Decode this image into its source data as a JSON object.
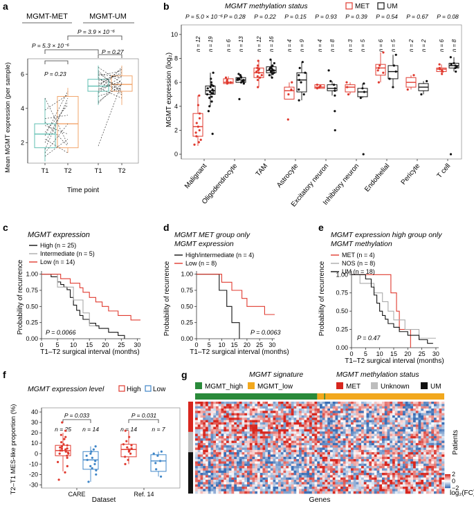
{
  "colors": {
    "met": "#e03a2f",
    "um": "#111111",
    "teal": "#5fbfb2",
    "orange": "#f2a46a",
    "high": "#111111",
    "intermediate": "#aaaaaa",
    "low": "#e03a2f",
    "blue": "#3f86c8",
    "heat_red": "#d7261e",
    "heat_blue": "#3b6fb6",
    "green": "#2a8a3a",
    "amber": "#f2a81d",
    "grey": "#bdbdbd"
  },
  "panels": {
    "a": "a",
    "b": "b",
    "c": "c",
    "d": "d",
    "e": "e",
    "f": "f",
    "g": "g"
  },
  "chart_data": [
    {
      "id": "a",
      "type": "line",
      "group_labels": [
        "MGMT-MET",
        "MGMT-UM"
      ],
      "pvalues": [
        "P = 5.3 × 10⁻⁶",
        "P = 3.9 × 10⁻⁶",
        "P = 0.23",
        "P = 0.27"
      ],
      "categories": [
        "T1",
        "T2",
        "T1",
        "T2"
      ],
      "ylabel": "Mean MGMT expression (per sample)",
      "xlabel": "Time point",
      "ylim": [
        0.8,
        6.9
      ],
      "yticks": [
        2,
        4,
        6
      ],
      "met_pairs": [
        [
          2.2,
          1.4
        ],
        [
          1.6,
          4.6
        ],
        [
          3.2,
          1.8
        ],
        [
          3.9,
          4.8
        ],
        [
          2.6,
          4.2
        ],
        [
          3.0,
          2.5
        ],
        [
          1.4,
          3.1
        ],
        [
          4.6,
          1.9
        ],
        [
          2.4,
          5.0
        ],
        [
          3.4,
          3.6
        ],
        [
          2.0,
          4.4
        ],
        [
          1.2,
          2.2
        ]
      ],
      "um_pairs": [
        [
          5.2,
          4.6
        ],
        [
          5.6,
          6.0
        ],
        [
          4.4,
          5.4
        ],
        [
          6.0,
          5.8
        ],
        [
          5.0,
          6.4
        ],
        [
          5.5,
          5.1
        ],
        [
          6.4,
          5.5
        ],
        [
          4.9,
          5.9
        ],
        [
          5.8,
          4.8
        ],
        [
          5.3,
          6.3
        ],
        [
          6.1,
          5.0
        ],
        [
          5.7,
          5.3
        ],
        [
          4.3,
          5.7
        ],
        [
          5.9,
          6.2
        ],
        [
          5.1,
          5.6
        ],
        [
          6.2,
          4.9
        ],
        [
          5.4,
          6.1
        ],
        [
          4.7,
          5.2
        ],
        [
          1.8,
          5.5
        ]
      ],
      "boxes": [
        {
          "q1": 1.7,
          "med": 2.5,
          "q3": 3.1,
          "lo": 0.9,
          "hi": 4.6
        },
        {
          "q1": 1.7,
          "med": 3.1,
          "q3": 4.7,
          "lo": 1.4,
          "hi": 5.2
        },
        {
          "q1": 5.0,
          "med": 5.3,
          "q3": 5.7,
          "lo": 4.2,
          "hi": 6.5
        },
        {
          "q1": 5.0,
          "med": 5.4,
          "q3": 5.9,
          "lo": 4.2,
          "hi": 6.5
        }
      ]
    },
    {
      "id": "b",
      "type": "box",
      "title": "MGMT methylation status",
      "legend": [
        "MET",
        "UM"
      ],
      "ylabel": "MGMT expression (log₂)",
      "ylim": [
        -0.4,
        10.8
      ],
      "yticks": [
        0,
        2,
        4,
        6,
        8,
        10
      ],
      "categories": [
        "Malignant",
        "Oligodendrocyte",
        "TAM",
        "Astrocyte",
        "Excitatory neuron",
        "Inhibitory neuron",
        "Endothelial",
        "Pericyte",
        "T cell"
      ],
      "pvalues": [
        "P = 5.0 × 10⁻⁶",
        "P = 0.28",
        "P = 0.22",
        "P = 0.15",
        "P = 0.93",
        "P = 0.39",
        "P = 0.54",
        "P = 0.67",
        "P = 0.08"
      ],
      "n_met": [
        "n = 12",
        "n = 6",
        "n = 12",
        "n = 4",
        "n = 4",
        "n = 3",
        "n = 6",
        "n = 2",
        "n = 6"
      ],
      "n_um": [
        "n = 19",
        "n = 13",
        "n = 16",
        "n = 9",
        "n = 8",
        "n = 5",
        "n = 5",
        "n = 2",
        "n = 8"
      ],
      "met": [
        {
          "q1": 1.5,
          "med": 2.3,
          "q3": 3.4,
          "lo": 0.7,
          "hi": 4.9,
          "pts": [
            0.8,
            1.2,
            1.5,
            1.8,
            2.0,
            2.3,
            2.6,
            3.0,
            3.4,
            4.1,
            4.9,
            1.0
          ]
        },
        {
          "q1": 5.9,
          "med": 6.0,
          "q3": 6.3,
          "lo": 5.9,
          "hi": 6.5,
          "pts": [
            5.9,
            6.0,
            6.2,
            6.4,
            6.1,
            6.0
          ]
        },
        {
          "q1": 6.4,
          "med": 6.8,
          "q3": 7.2,
          "lo": 5.6,
          "hi": 7.8,
          "pts": [
            5.6,
            6.2,
            6.4,
            6.6,
            6.8,
            6.9,
            7.0,
            7.2,
            7.4,
            7.8,
            6.5,
            7.1
          ]
        },
        {
          "q1": 4.6,
          "med": 5.3,
          "q3": 5.6,
          "lo": 4.6,
          "hi": 6.0,
          "pts": [
            2.9,
            5.0,
            5.4,
            6.0
          ]
        },
        {
          "q1": 5.5,
          "med": 5.6,
          "q3": 5.8,
          "lo": 5.5,
          "hi": 5.8,
          "pts": [
            5.5,
            5.6,
            5.7,
            5.8
          ]
        },
        {
          "q1": 5.2,
          "med": 5.6,
          "q3": 5.8,
          "lo": 5.0,
          "hi": 6.0,
          "pts": [
            5.0,
            5.6,
            6.0
          ]
        },
        {
          "q1": 6.6,
          "med": 7.2,
          "q3": 7.5,
          "lo": 6.0,
          "hi": 8.5,
          "pts": [
            6.0,
            6.8,
            7.2,
            7.4,
            8.5,
            7.0
          ]
        },
        {
          "q1": 5.6,
          "med": 6.0,
          "q3": 6.4,
          "lo": 5.4,
          "hi": 6.6,
          "pts": [
            5.4,
            6.6
          ]
        },
        {
          "q1": 6.9,
          "med": 7.1,
          "q3": 7.2,
          "lo": 6.7,
          "hi": 7.5,
          "pts": [
            6.7,
            6.9,
            7.1,
            7.2,
            7.5,
            7.0
          ]
        }
      ],
      "um": [
        {
          "q1": 5.0,
          "med": 5.3,
          "q3": 5.7,
          "lo": 4.0,
          "hi": 6.8,
          "pts": [
            1.7,
            3.6,
            4.0,
            4.4,
            4.8,
            5.0,
            5.1,
            5.2,
            5.3,
            5.4,
            5.5,
            5.6,
            5.7,
            5.8,
            6.0,
            6.3,
            6.8,
            5.1,
            4.7
          ]
        },
        {
          "q1": 6.0,
          "med": 6.2,
          "q3": 6.4,
          "lo": 5.9,
          "hi": 6.7,
          "pts": [
            4.6,
            5.9,
            6.0,
            6.1,
            6.2,
            6.2,
            6.3,
            6.4,
            6.5,
            6.6,
            6.7,
            6.1,
            6.3
          ]
        },
        {
          "q1": 6.8,
          "med": 7.0,
          "q3": 7.3,
          "lo": 6.4,
          "hi": 7.9,
          "pts": [
            6.4,
            6.6,
            6.8,
            6.9,
            7.0,
            7.0,
            7.1,
            7.2,
            7.3,
            7.4,
            7.6,
            7.9,
            6.7,
            7.1,
            6.9,
            7.2
          ]
        },
        {
          "q1": 5.2,
          "med": 6.2,
          "q3": 6.8,
          "lo": 4.5,
          "hi": 7.7,
          "pts": [
            4.5,
            5.0,
            5.4,
            6.0,
            6.2,
            6.6,
            6.8,
            7.2,
            7.7
          ]
        },
        {
          "q1": 5.3,
          "med": 5.5,
          "q3": 5.8,
          "lo": 4.9,
          "hi": 6.1,
          "pts": [
            2.0,
            3.6,
            4.9,
            5.3,
            5.5,
            5.8,
            6.1,
            7.0
          ]
        },
        {
          "q1": 4.8,
          "med": 5.2,
          "q3": 5.5,
          "lo": 4.7,
          "hi": 5.9,
          "pts": [
            0.0,
            4.7,
            5.2,
            5.5,
            5.9
          ]
        },
        {
          "q1": 6.3,
          "med": 6.9,
          "q3": 7.4,
          "lo": 5.6,
          "hi": 8.3,
          "pts": [
            5.6,
            6.3,
            6.9,
            7.4,
            8.3
          ]
        },
        {
          "q1": 5.3,
          "med": 5.6,
          "q3": 5.9,
          "lo": 5.0,
          "hi": 6.1,
          "pts": [
            5.0,
            6.1
          ]
        },
        {
          "q1": 7.2,
          "med": 7.4,
          "q3": 7.6,
          "lo": 6.9,
          "hi": 8.1,
          "pts": [
            0.0,
            6.9,
            7.2,
            7.4,
            7.6,
            8.1,
            7.5,
            7.3
          ]
        }
      ]
    },
    {
      "id": "c",
      "type": "line",
      "title": "MGMT expression",
      "legend": [
        "High (n = 25)",
        "Intermediate (n = 5)",
        "Low (n = 14)"
      ],
      "ylabel": "Probability of recurrence",
      "xlabel": "T1–T2 surgical interval (months)",
      "pvalue": "P = 0.0066",
      "xlim": [
        0,
        31
      ],
      "ylim": [
        0,
        1.05
      ],
      "xticks": [
        0,
        5,
        10,
        15,
        20,
        25,
        30
      ],
      "yticks": [
        0,
        0.25,
        0.5,
        0.75,
        1.0
      ],
      "series": [
        {
          "name": "High",
          "steps": [
            [
              0,
              1
            ],
            [
              3,
              0.96
            ],
            [
              5,
              0.88
            ],
            [
              6,
              0.84
            ],
            [
              7,
              0.8
            ],
            [
              8,
              0.76
            ],
            [
              9,
              0.64
            ],
            [
              10,
              0.52
            ],
            [
              11,
              0.44
            ],
            [
              12,
              0.36
            ],
            [
              13,
              0.3
            ],
            [
              15,
              0.24
            ],
            [
              17,
              0.2
            ],
            [
              18,
              0.16
            ],
            [
              21,
              0.1
            ],
            [
              24,
              0.05
            ],
            [
              26,
              0
            ]
          ],
          "end": 26
        },
        {
          "name": "Intermediate",
          "steps": [
            [
              0,
              1
            ],
            [
              5,
              0.8
            ],
            [
              10,
              0.6
            ],
            [
              13,
              0.4
            ],
            [
              15,
              0.2
            ]
          ],
          "end": 17
        },
        {
          "name": "Low",
          "steps": [
            [
              0,
              1
            ],
            [
              6,
              0.93
            ],
            [
              9,
              0.86
            ],
            [
              12,
              0.79
            ],
            [
              13,
              0.72
            ],
            [
              15,
              0.64
            ],
            [
              17,
              0.57
            ],
            [
              19,
              0.5
            ],
            [
              21,
              0.43
            ],
            [
              24,
              0.36
            ],
            [
              28,
              0.29
            ]
          ],
          "end": 31
        }
      ]
    },
    {
      "id": "d",
      "type": "line",
      "title": "MGMT MET group only",
      "subtitle": "MGMT expression",
      "legend": [
        "High/intermediate (n = 4)",
        "Low (n = 8)"
      ],
      "ylabel": "Probability of recurrence",
      "xlabel": "T1–T2 surgical interval (months)",
      "pvalue": "P = 0.0063",
      "xlim": [
        0,
        31
      ],
      "ylim": [
        0,
        1.05
      ],
      "xticks": [
        0,
        5,
        10,
        15,
        20,
        25,
        30
      ],
      "yticks": [
        0,
        0.25,
        0.5,
        0.75,
        1.0
      ],
      "series": [
        {
          "name": "High/intermediate",
          "steps": [
            [
              0,
              1
            ],
            [
              9,
              0.75
            ],
            [
              12,
              0.5
            ],
            [
              14,
              0.25
            ],
            [
              17,
              0
            ]
          ],
          "end": 17
        },
        {
          "name": "Low",
          "steps": [
            [
              0,
              1
            ],
            [
              10,
              0.875
            ],
            [
              14,
              0.75
            ],
            [
              18,
              0.625
            ],
            [
              20,
              0.5
            ],
            [
              27,
              0.375
            ]
          ],
          "end": 31
        }
      ]
    },
    {
      "id": "e",
      "type": "line",
      "title": "MGMT expression high group only",
      "subtitle": "MGMT methylation",
      "legend": [
        "MET (n = 4)",
        "NOS (n = 8)",
        "UM (n = 18)"
      ],
      "ylabel": "Probability of recurrence",
      "xlabel": "T1–T2 surgical interval (months)",
      "pvalue": "P = 0.47",
      "xlim": [
        0,
        31
      ],
      "ylim": [
        0,
        1.05
      ],
      "xticks": [
        0,
        5,
        10,
        15,
        20,
        25,
        30
      ],
      "yticks": [
        0,
        0.25,
        0.5,
        0.75,
        1.0
      ],
      "series": [
        {
          "name": "MET",
          "steps": [
            [
              0,
              1
            ],
            [
              14,
              0.75
            ],
            [
              16,
              0.5
            ],
            [
              17,
              0.25
            ],
            [
              21,
              0
            ]
          ],
          "end": 21
        },
        {
          "name": "NOS",
          "steps": [
            [
              0,
              1
            ],
            [
              3,
              0.88
            ],
            [
              8,
              0.75
            ],
            [
              11,
              0.63
            ],
            [
              13,
              0.5
            ],
            [
              15,
              0.38
            ],
            [
              19,
              0.25
            ],
            [
              24,
              0.13
            ]
          ],
          "end": 30
        },
        {
          "name": "UM",
          "steps": [
            [
              0,
              1
            ],
            [
              5,
              0.94
            ],
            [
              7,
              0.83
            ],
            [
              8,
              0.72
            ],
            [
              9,
              0.61
            ],
            [
              10,
              0.5
            ],
            [
              11,
              0.44
            ],
            [
              12,
              0.39
            ],
            [
              13,
              0.33
            ],
            [
              15,
              0.28
            ],
            [
              17,
              0.22
            ],
            [
              20,
              0.17
            ],
            [
              24,
              0.11
            ],
            [
              27,
              0.06
            ]
          ],
          "end": 29
        }
      ]
    },
    {
      "id": "f",
      "type": "box",
      "title": "MGMT expression level",
      "legend": [
        "High",
        "Low"
      ],
      "ylabel": "T2–T1 MES-like proportion (%)",
      "xlabel": "Dataset",
      "categories": [
        "CARE",
        "Ref. 14"
      ],
      "pvalues": [
        "P = 0.033",
        "P = 0.031"
      ],
      "n_high": [
        "n = 25",
        "n = 14"
      ],
      "n_low": [
        "n = 14",
        "n = 7"
      ],
      "ylim": [
        -33,
        44
      ],
      "yticks": [
        -30,
        -20,
        -10,
        0,
        10,
        20,
        30,
        40
      ],
      "high": [
        {
          "q1": -2,
          "med": 3,
          "q3": 8,
          "lo": -17,
          "hi": 20,
          "pts": [
            -25,
            -18,
            -12,
            -8,
            -4,
            -2,
            0,
            1,
            2,
            3,
            3,
            4,
            5,
            5,
            6,
            7,
            8,
            9,
            11,
            14,
            16,
            18,
            22,
            30,
            0
          ]
        },
        {
          "q1": -3,
          "med": 4,
          "q3": 9,
          "lo": -10,
          "hi": 22,
          "pts": [
            -10,
            -6,
            -3,
            0,
            2,
            3,
            4,
            5,
            6,
            8,
            9,
            12,
            16,
            22
          ]
        }
      ],
      "low": [
        {
          "q1": -15,
          "med": -6,
          "q3": 2,
          "lo": -27,
          "hi": 7,
          "pts": [
            -27,
            -20,
            -16,
            -14,
            -10,
            -7,
            -6,
            -4,
            -2,
            0,
            2,
            4,
            7,
            -12
          ]
        },
        {
          "q1": -17,
          "med": -7,
          "q3": -1,
          "lo": -22,
          "hi": 2,
          "pts": [
            -22,
            -15,
            -9,
            -7,
            -2,
            0,
            2
          ]
        }
      ]
    },
    {
      "id": "g",
      "type": "heatmap",
      "title1": "MGMT signature",
      "title2": "MGMT methylation status",
      "legend1": [
        "MGMT_high",
        "MGMT_low"
      ],
      "legend2": [
        "MET",
        "Unknown",
        "UM"
      ],
      "xlabel": "Genes",
      "ylabel": "Patients",
      "colorbar_label": "log₂(FC)",
      "colorbar_ticks": [
        "2",
        "0",
        "−2"
      ],
      "color_range": [
        -2,
        2
      ]
    }
  ]
}
